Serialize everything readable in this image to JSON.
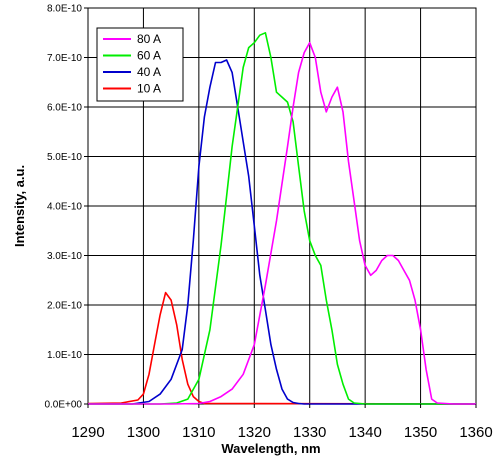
{
  "chart_data": {
    "type": "line",
    "title": "",
    "xlabel": "Wavelength, nm",
    "ylabel": "Intensity, a.u.",
    "xlim": [
      1290,
      1360
    ],
    "ylim": [
      0,
      8e-10
    ],
    "x_ticks": [
      1290,
      1300,
      1310,
      1320,
      1330,
      1340,
      1350,
      1360
    ],
    "x_tick_labels": [
      "1290",
      "1300",
      "1310",
      "1320",
      "1330",
      "1340",
      "1350",
      "1360"
    ],
    "y_ticks": [
      0,
      1e-10,
      2e-10,
      3e-10,
      4e-10,
      5e-10,
      6e-10,
      7e-10,
      8e-10
    ],
    "y_tick_labels": [
      "0.0E+00",
      "1.0E-10",
      "2.0E-10",
      "3.0E-10",
      "4.0E-10",
      "5.0E-10",
      "6.0E-10",
      "7.0E-10",
      "8.0E-10"
    ],
    "grid": true,
    "legend_position": "top-left",
    "series": [
      {
        "name": "80 A",
        "color": "#ff00ff",
        "x": [
          1290,
          1305,
          1310,
          1312,
          1314,
          1316,
          1318,
          1320,
          1322,
          1324,
          1326,
          1327,
          1328,
          1329,
          1330,
          1331,
          1332,
          1333,
          1334,
          1335,
          1336,
          1337,
          1338,
          1339,
          1340,
          1341,
          1342,
          1343,
          1344,
          1345,
          1346,
          1347,
          1348,
          1349,
          1350,
          1351,
          1352,
          1353,
          1356,
          1360
        ],
        "y": [
          0,
          0,
          1e-12,
          5e-12,
          1.5e-11,
          3e-11,
          6e-11,
          1.2e-10,
          2.4e-10,
          3.7e-10,
          5.2e-10,
          6e-10,
          6.7e-10,
          7.1e-10,
          7.3e-10,
          7e-10,
          6.3e-10,
          5.9e-10,
          6.2e-10,
          6.4e-10,
          5.9e-10,
          4.9e-10,
          4.1e-10,
          3.3e-10,
          2.8e-10,
          2.6e-10,
          2.7e-10,
          2.9e-10,
          3e-10,
          3e-10,
          2.9e-10,
          2.7e-10,
          2.5e-10,
          2.1e-10,
          1.5e-10,
          7e-11,
          1e-11,
          2e-12,
          0,
          0
        ]
      },
      {
        "name": "60 A",
        "color": "#00ee00",
        "x": [
          1290,
          1303,
          1306,
          1308,
          1310,
          1312,
          1314,
          1315,
          1316,
          1317,
          1318,
          1319,
          1320,
          1321,
          1322,
          1323,
          1324,
          1325,
          1326,
          1327,
          1328,
          1329,
          1330,
          1331,
          1332,
          1333,
          1334,
          1335,
          1336,
          1337,
          1338,
          1340,
          1360
        ],
        "y": [
          0,
          0,
          2e-12,
          1e-11,
          5e-11,
          1.5e-10,
          3.2e-10,
          4.2e-10,
          5.2e-10,
          6e-10,
          6.8e-10,
          7.2e-10,
          7.3e-10,
          7.45e-10,
          7.5e-10,
          7e-10,
          6.3e-10,
          6.2e-10,
          6.1e-10,
          5.7e-10,
          4.8e-10,
          3.9e-10,
          3.3e-10,
          3e-10,
          2.8e-10,
          2.1e-10,
          1.5e-10,
          8e-11,
          4e-11,
          1e-11,
          2e-12,
          0,
          0
        ]
      },
      {
        "name": "40 A",
        "color": "#0000cc",
        "x": [
          1290,
          1298,
          1301,
          1303,
          1305,
          1307,
          1308,
          1309,
          1310,
          1311,
          1312,
          1313,
          1314,
          1315,
          1316,
          1317,
          1318,
          1319,
          1320,
          1321,
          1322,
          1323,
          1324,
          1325,
          1326,
          1327,
          1328,
          1329,
          1330,
          1360
        ],
        "y": [
          0,
          0,
          5e-12,
          2e-11,
          5e-11,
          1.1e-10,
          2e-10,
          3.3e-10,
          4.8e-10,
          5.8e-10,
          6.4e-10,
          6.9e-10,
          6.9e-10,
          6.95e-10,
          6.7e-10,
          6e-10,
          5.3e-10,
          4.6e-10,
          3.6e-10,
          2.6e-10,
          1.9e-10,
          1.2e-10,
          7e-11,
          3e-11,
          1e-11,
          3e-12,
          1e-12,
          0,
          0,
          0
        ]
      },
      {
        "name": "10 A",
        "color": "#ff0000",
        "x": [
          1290,
          1296,
          1299,
          1300,
          1301,
          1302,
          1303,
          1304,
          1305,
          1306,
          1307,
          1308,
          1309,
          1310,
          1311,
          1360
        ],
        "y": [
          1e-12,
          2e-12,
          8e-12,
          2e-11,
          6e-11,
          1.2e-10,
          1.8e-10,
          2.25e-10,
          2.1e-10,
          1.6e-10,
          9e-11,
          4e-11,
          1.5e-11,
          5e-12,
          1e-12,
          0
        ]
      }
    ]
  }
}
